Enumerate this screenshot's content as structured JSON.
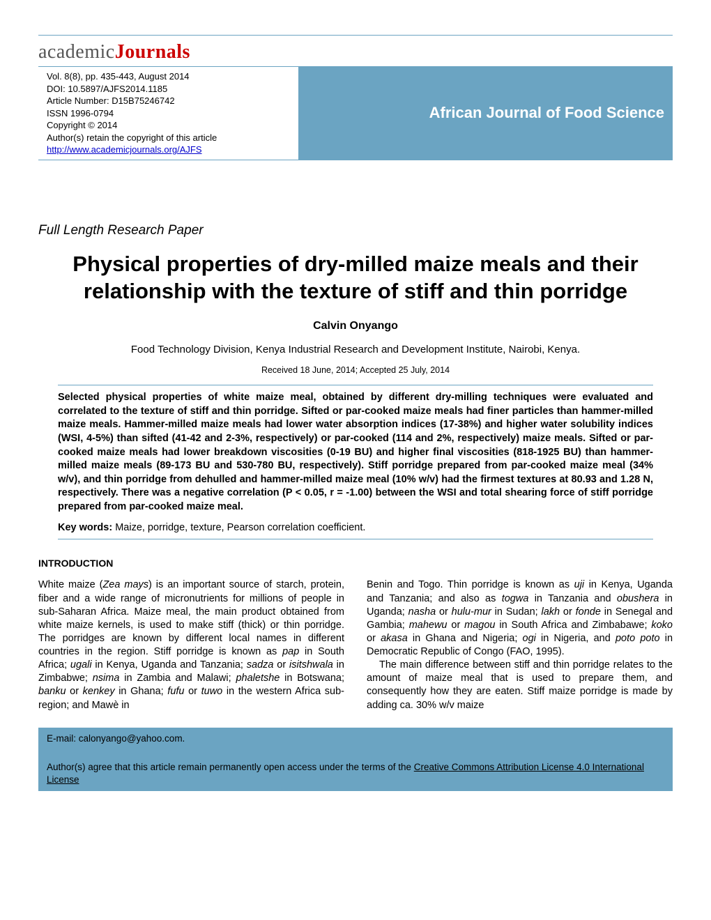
{
  "colors": {
    "header_blue": "#6ba4c2",
    "logo_red": "#c00",
    "logo_gray": "#555",
    "link_blue": "#0000cc",
    "background": "#ffffff",
    "text": "#000000"
  },
  "typography": {
    "title_fontsize": 31,
    "journal_name_fontsize": 22,
    "body_fontsize": 14.5,
    "abstract_fontsize": 14.5,
    "logo_fontsize": 28
  },
  "logo": {
    "part1": "academic",
    "part2": "Journals"
  },
  "header": {
    "vol_line": "Vol. 8(8), pp. 435-443, August 2014",
    "doi_line": "DOI: 10.5897/AJFS2014.1185",
    "article_number": "Article Number: D15B75246742",
    "issn": "ISSN 1996-0794",
    "copyright": "Copyright © 2014",
    "rights": "Author(s) retain the copyright of this article",
    "url": "http://www.academicjournals.org/AJFS",
    "journal_name": "African Journal of Food Science"
  },
  "section_label": "Full Length Research Paper",
  "title": "Physical properties of dry-milled maize meals and their relationship with the texture of stiff and thin porridge",
  "author": "Calvin Onyango",
  "affiliation": "Food Technology Division, Kenya Industrial Research and Development Institute, Nairobi, Kenya.",
  "dates": "Received 18 June, 2014; Accepted 25 July, 2014",
  "abstract": "Selected physical properties of white maize meal, obtained by different dry-milling techniques were evaluated and correlated to the texture of stiff and thin porridge. Sifted or par-cooked maize meals had finer particles than hammer-milled maize meals. Hammer-milled maize meals had lower water absorption indices (17-38%) and higher water solubility indices (WSI, 4-5%) than sifted (41-42 and 2-3%, respectively) or par-cooked (114 and 2%, respectively) maize meals. Sifted or par-cooked maize meals had lower breakdown viscosities (0-19 BU) and higher final viscosities (818-1925 BU) than hammer-milled maize meals (89-173 BU and 530-780 BU, respectively). Stiff porridge prepared from par-cooked maize meal (34% w/v), and thin porridge from dehulled and hammer-milled maize meal (10% w/v) had the firmest textures at 80.93 and 1.28 N, respectively. There was a negative correlation (P < 0.05, r = -1.00) between the WSI and total shearing force of stiff porridge prepared from par-cooked maize meal.",
  "keywords_label": "Key words:",
  "keywords_text": " Maize, porridge, texture, Pearson correlation coefficient.",
  "intro_heading": "INTRODUCTION",
  "body": {
    "col1_html": "White maize (<i>Zea mays</i>) is an important source of starch, protein, fiber and a wide range of micronutrients for millions of people in sub-Saharan Africa. Maize meal, the main product obtained from white maize kernels, is used to make stiff (thick) or thin porridge. The porridges are known by different local names in different countries in the region. Stiff porridge is known as <i>pap</i> in South Africa; <i>ugali</i> in Kenya, Uganda and Tanzania; <i>sadza</i> or <i>isitshwala</i> in Zimbabwe; <i>nsima</i> in Zambia and Malawi; <i>phaletshe</i> in Botswana; <i>banku</i> or <i>kenkey</i> in Ghana; <i>fufu</i> or <i>tuwo</i> in the western Africa sub-region; and Mawè in",
    "col2_p1_html": "Benin and Togo. Thin porridge is known as <i>uji</i> in Kenya, Uganda and Tanzania; and also as <i>togwa</i> in Tanzania and <i>obushera</i> in Uganda; <i>nasha</i> or <i>hulu-mur</i> in Sudan; <i>lakh</i> or <i>fonde</i> in Senegal and Gambia; <i>mahewu</i> or <i>magou</i> in South Africa and Zimbabawe; <i>koko</i> or <i>akasa</i> in Ghana and Nigeria; <i>ogi</i> in Nigeria, and <i>poto poto</i> in Democratic Republic of Congo (FAO, 1995).",
    "col2_p2_html": "The main difference between stiff and thin porridge relates to the amount of maize meal that is used to prepare them, and consequently how they are eaten. Stiff maize porridge is made by adding ca. 30% w/v maize"
  },
  "footer": {
    "email_label": "E-mail:  ",
    "email": "calonyango@yahoo.com.",
    "license_pre": "Author(s) agree that this article remain permanently open access under the terms of the ",
    "license_link": "Creative Commons Attribution License 4.0 International License"
  }
}
